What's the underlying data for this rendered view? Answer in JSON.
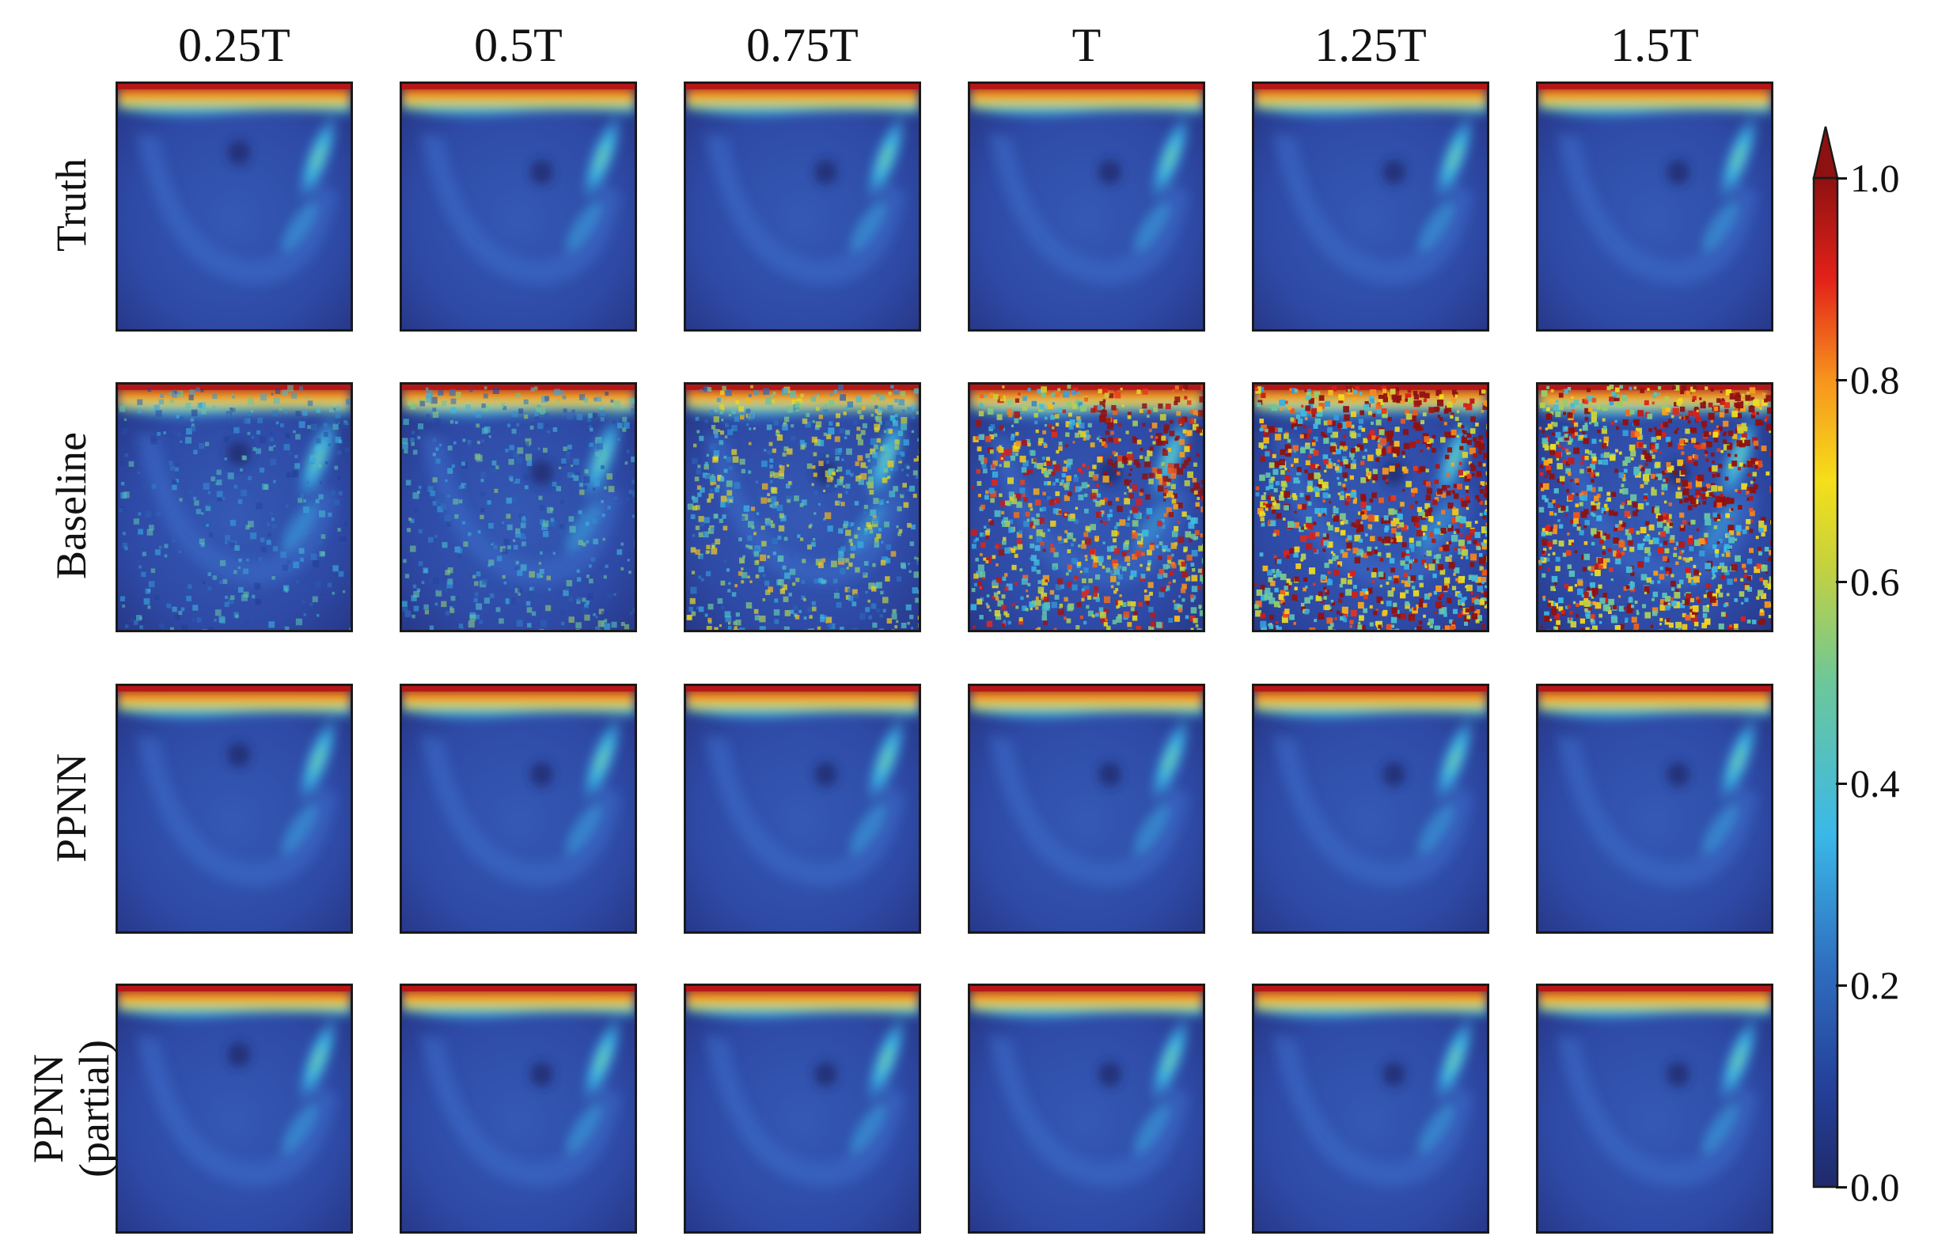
{
  "chart_data": {
    "type": "heatmap",
    "layout": "grid of field snapshots (rows = methods, columns = time)",
    "columns": [
      "0.25T",
      "0.5T",
      "0.75T",
      "T",
      "1.25T",
      "1.5T"
    ],
    "rows": [
      {
        "id": "truth",
        "label": "Truth",
        "label_lines": [
          "Truth"
        ],
        "noise": [
          0,
          0,
          0,
          0,
          0,
          0
        ]
      },
      {
        "id": "baseline",
        "label": "Baseline",
        "label_lines": [
          "Baseline"
        ],
        "noise": [
          0.15,
          0.25,
          0.5,
          0.8,
          1.0,
          1.0
        ]
      },
      {
        "id": "ppnn",
        "label": "PPNN",
        "label_lines": [
          "PPNN"
        ],
        "noise": [
          0,
          0,
          0,
          0,
          0,
          0
        ]
      },
      {
        "id": "ppnn_partial",
        "label": "PPNN (partial)",
        "label_lines": [
          "PPNN",
          "(partial)"
        ],
        "noise": [
          0,
          0,
          0,
          0,
          0,
          0
        ]
      }
    ],
    "colorbar": {
      "colormap": "jet",
      "min": 0.0,
      "max": 1.0,
      "extend": "max",
      "ticks": [
        "0.0",
        "0.2",
        "0.4",
        "0.6",
        "0.8",
        "1.0"
      ]
    }
  }
}
